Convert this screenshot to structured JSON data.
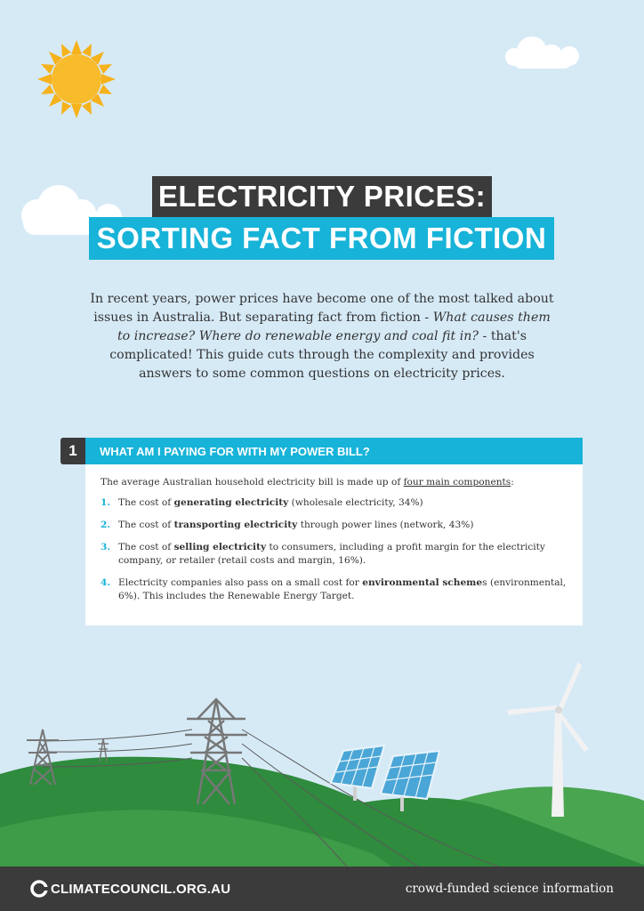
{
  "title": {
    "line1": "ELECTRICITY PRICES:",
    "line2": "SORTING FACT FROM FICTION"
  },
  "intro": {
    "part1": "In recent years, power prices have become one of the most talked about issues in Australia. But separating fact from fiction - ",
    "italic": "What causes them to increase? Where do renewable energy and coal fit in?",
    "part2": " - that's complicated! This guide cuts through the complexity and provides answers to some common questions on electricity prices."
  },
  "section1": {
    "number": "1",
    "heading": "WHAT AM I PAYING FOR WITH MY POWER BILL?",
    "intro_before": "The average Australian household electricity bill is made up of ",
    "intro_underlined": "four main components",
    "intro_after": ":",
    "items": [
      {
        "num": "1.",
        "before": "The cost of ",
        "bold": "generating electricity",
        "after": " (wholesale electricity, 34%)"
      },
      {
        "num": "2.",
        "before": "The cost of ",
        "bold": "transporting electricity",
        "after": " through power lines (network, 43%)"
      },
      {
        "num": "3.",
        "before": "The cost of ",
        "bold": "selling electricity",
        "after": " to consumers, including a profit margin for the electricity company, or retailer (retail costs and margin, 16%)."
      },
      {
        "num": "4.",
        "before": "Electricity companies also pass on a small cost for ",
        "bold": "environmental scheme",
        "after": "s (environmental, 6%). This includes the Renewable Energy Target."
      }
    ]
  },
  "footer": {
    "brand": "CLIMATECOUNCIL.ORG.AU",
    "tagline": "crowd-funded science information"
  },
  "icons": {
    "sun": "sun-icon",
    "cloud": "cloud-icon",
    "pylon": "transmission-tower-icon",
    "solar": "solar-panel-icon",
    "turbine": "wind-turbine-icon",
    "logo": "climate-council-logo-icon"
  },
  "colors": {
    "sky": "#d6eaf6",
    "accent": "#17b3d8",
    "dark": "#3b3b3b",
    "hill_dark": "#2e8a3e",
    "hill_light": "#49a34f"
  }
}
